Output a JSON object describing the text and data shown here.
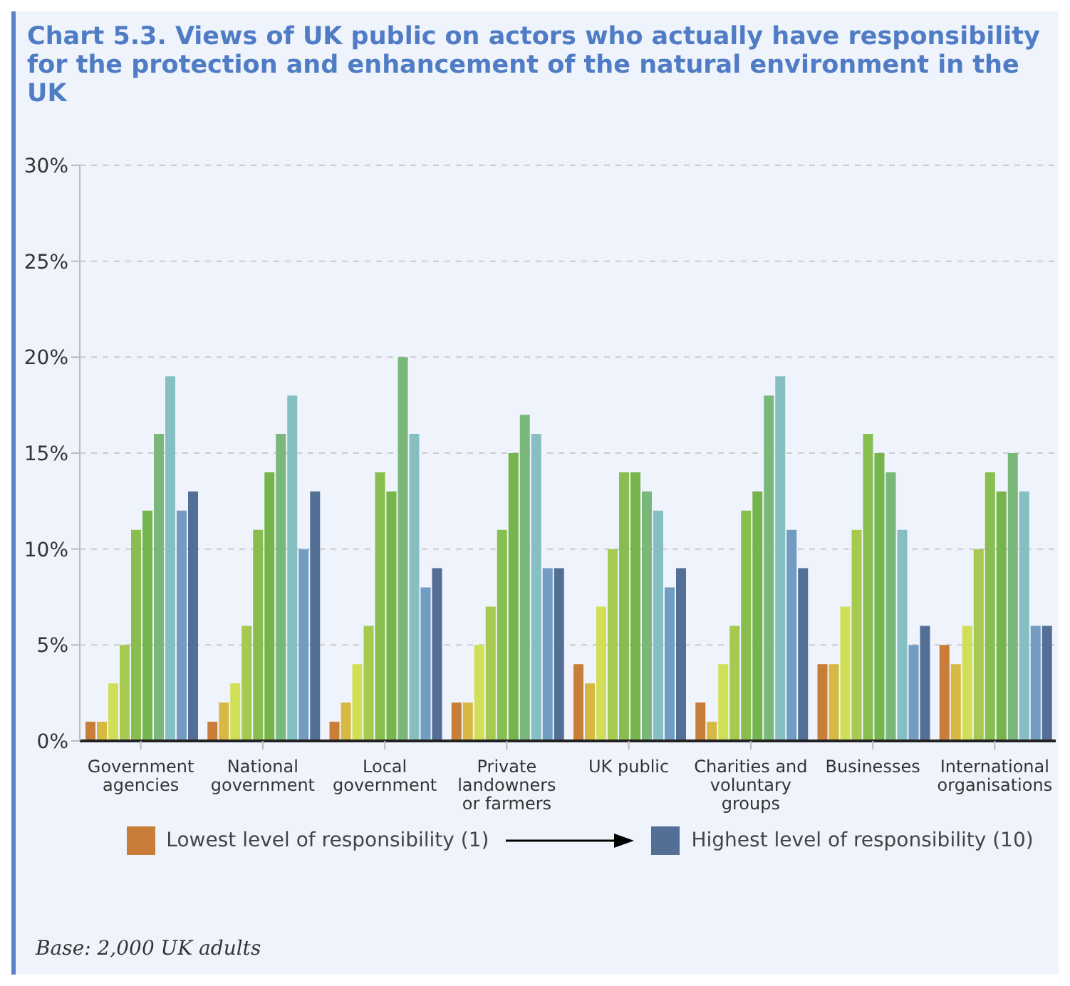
{
  "chart_data": {
    "type": "bar",
    "title": "Chart 5.3. Views of UK public on actors who actually have responsibility for the protection and enhancement of the natural environment in the UK",
    "categories": [
      "Government\nagencies",
      "National\ngovernment",
      "Local\ngovernment",
      "Private\nlandowners\nor farmers",
      "UK public",
      "Charities and\nvoluntary\ngroups",
      "Businesses",
      "International\norganisations"
    ],
    "series": [
      {
        "name": "Lowest level of responsibility (1)",
        "color": "#c87d38",
        "values": [
          1,
          1,
          1,
          2,
          4,
          2,
          4,
          5
        ]
      },
      {
        "color": "#d6b843",
        "values": [
          1,
          2,
          2,
          2,
          3,
          1,
          4,
          4
        ]
      },
      {
        "color": "#d0df55",
        "values": [
          3,
          3,
          4,
          5,
          7,
          4,
          7,
          6
        ]
      },
      {
        "color": "#a6c94f",
        "values": [
          5,
          6,
          6,
          7,
          10,
          6,
          11,
          10
        ]
      },
      {
        "color": "#88be4f",
        "values": [
          11,
          11,
          14,
          11,
          14,
          12,
          16,
          14
        ]
      },
      {
        "color": "#76b54b",
        "values": [
          12,
          14,
          13,
          15,
          14,
          13,
          15,
          13
        ]
      },
      {
        "color": "#7ab77a",
        "values": [
          16,
          16,
          20,
          17,
          13,
          18,
          14,
          15
        ]
      },
      {
        "color": "#86bfc2",
        "values": [
          19,
          18,
          16,
          16,
          12,
          19,
          11,
          13
        ]
      },
      {
        "color": "#729cc1",
        "values": [
          12,
          10,
          8,
          9,
          8,
          11,
          5,
          6
        ]
      },
      {
        "name": "Highest level of responsibility (10)",
        "color": "#546f96",
        "values": [
          13,
          13,
          9,
          9,
          9,
          9,
          6,
          6
        ]
      }
    ],
    "ylim": [
      0,
      30
    ],
    "yticks": [
      {
        "value": 0,
        "label": "0%"
      },
      {
        "value": 5,
        "label": "5%"
      },
      {
        "value": 10,
        "label": "10%"
      },
      {
        "value": 15,
        "label": "15%"
      },
      {
        "value": 20,
        "label": "20%"
      },
      {
        "value": 25,
        "label": "25%"
      },
      {
        "value": 30,
        "label": "30%"
      }
    ],
    "grid": "y",
    "legend": "bottom",
    "annotations": [
      "Base: 2,000 UK adults"
    ]
  }
}
